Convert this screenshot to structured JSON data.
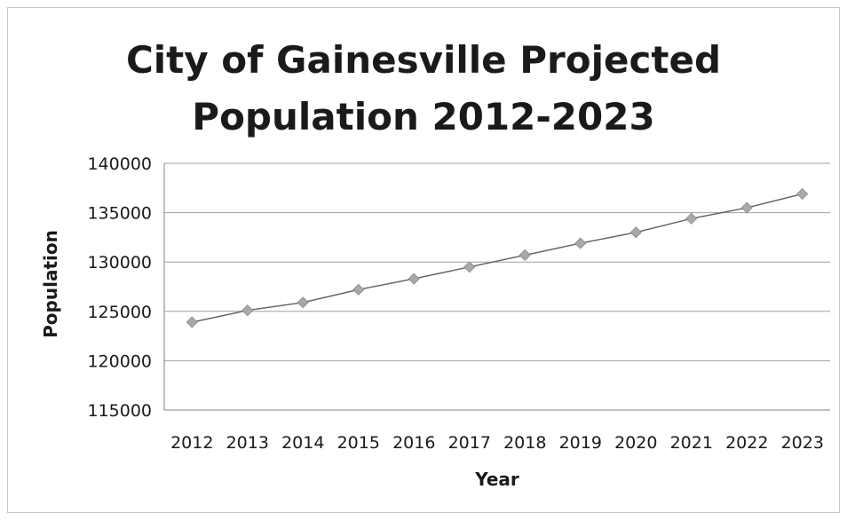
{
  "chart_data": {
    "type": "line",
    "title": "City of Gainesville Projected\nPopulation 2012-2023",
    "xlabel": "Year",
    "ylabel": "Population",
    "x": [
      "2012",
      "2013",
      "2014",
      "2015",
      "2016",
      "2017",
      "2018",
      "2019",
      "2020",
      "2021",
      "2022",
      "2023"
    ],
    "series": [
      {
        "values": [
          123900,
          125100,
          125900,
          127200,
          128300,
          129500,
          130700,
          131900,
          133000,
          134400,
          135500,
          136900
        ]
      }
    ],
    "ylim": [
      115000,
      140000
    ],
    "yticks": [
      "115000",
      "120000",
      "125000",
      "130000",
      "135000",
      "140000"
    ],
    "grid": true,
    "legend": "none",
    "colors": {
      "line": "#606060",
      "marker": "#a9a9a9",
      "gridline": "#a0a0a0",
      "axis": "#808080"
    }
  }
}
